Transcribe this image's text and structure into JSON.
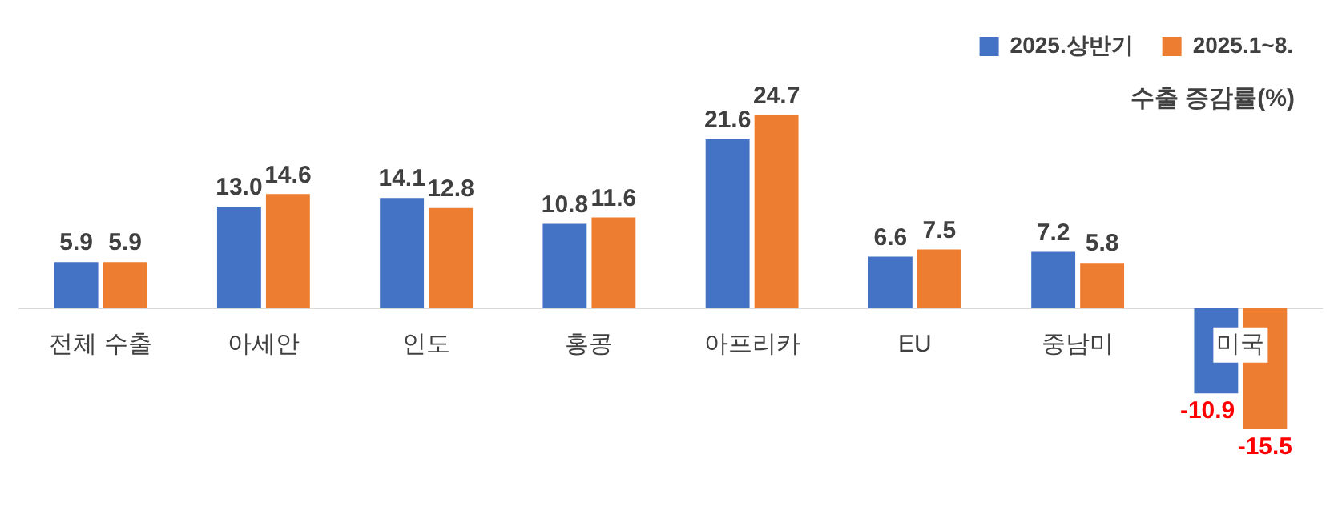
{
  "chart_data": {
    "type": "bar",
    "categories": [
      "전체 수출",
      "아세안",
      "인도",
      "홍콩",
      "아프리카",
      "EU",
      "중남미",
      "미국"
    ],
    "series": [
      {
        "name": "2025.상반기",
        "color": "#4472c4",
        "values": [
          5.9,
          13.0,
          14.1,
          10.8,
          21.6,
          6.6,
          7.2,
          -10.9
        ],
        "value_labels": [
          "5.9",
          "13.0",
          "14.1",
          "10.8",
          "21.6",
          "6.6",
          "7.2",
          "-10.9"
        ]
      },
      {
        "name": "2025.1~8.",
        "color": "#ed7d31",
        "values": [
          5.9,
          14.6,
          12.8,
          11.6,
          24.7,
          7.5,
          5.8,
          -15.5
        ],
        "value_labels": [
          "5.9",
          "14.6",
          "12.8",
          "11.6",
          "24.7",
          "7.5",
          "5.8",
          "-15.5"
        ]
      }
    ],
    "relative": false,
    "legend": "top right",
    "grid": false,
    "annotations": [
      "수출 증감률(%)"
    ]
  }
}
